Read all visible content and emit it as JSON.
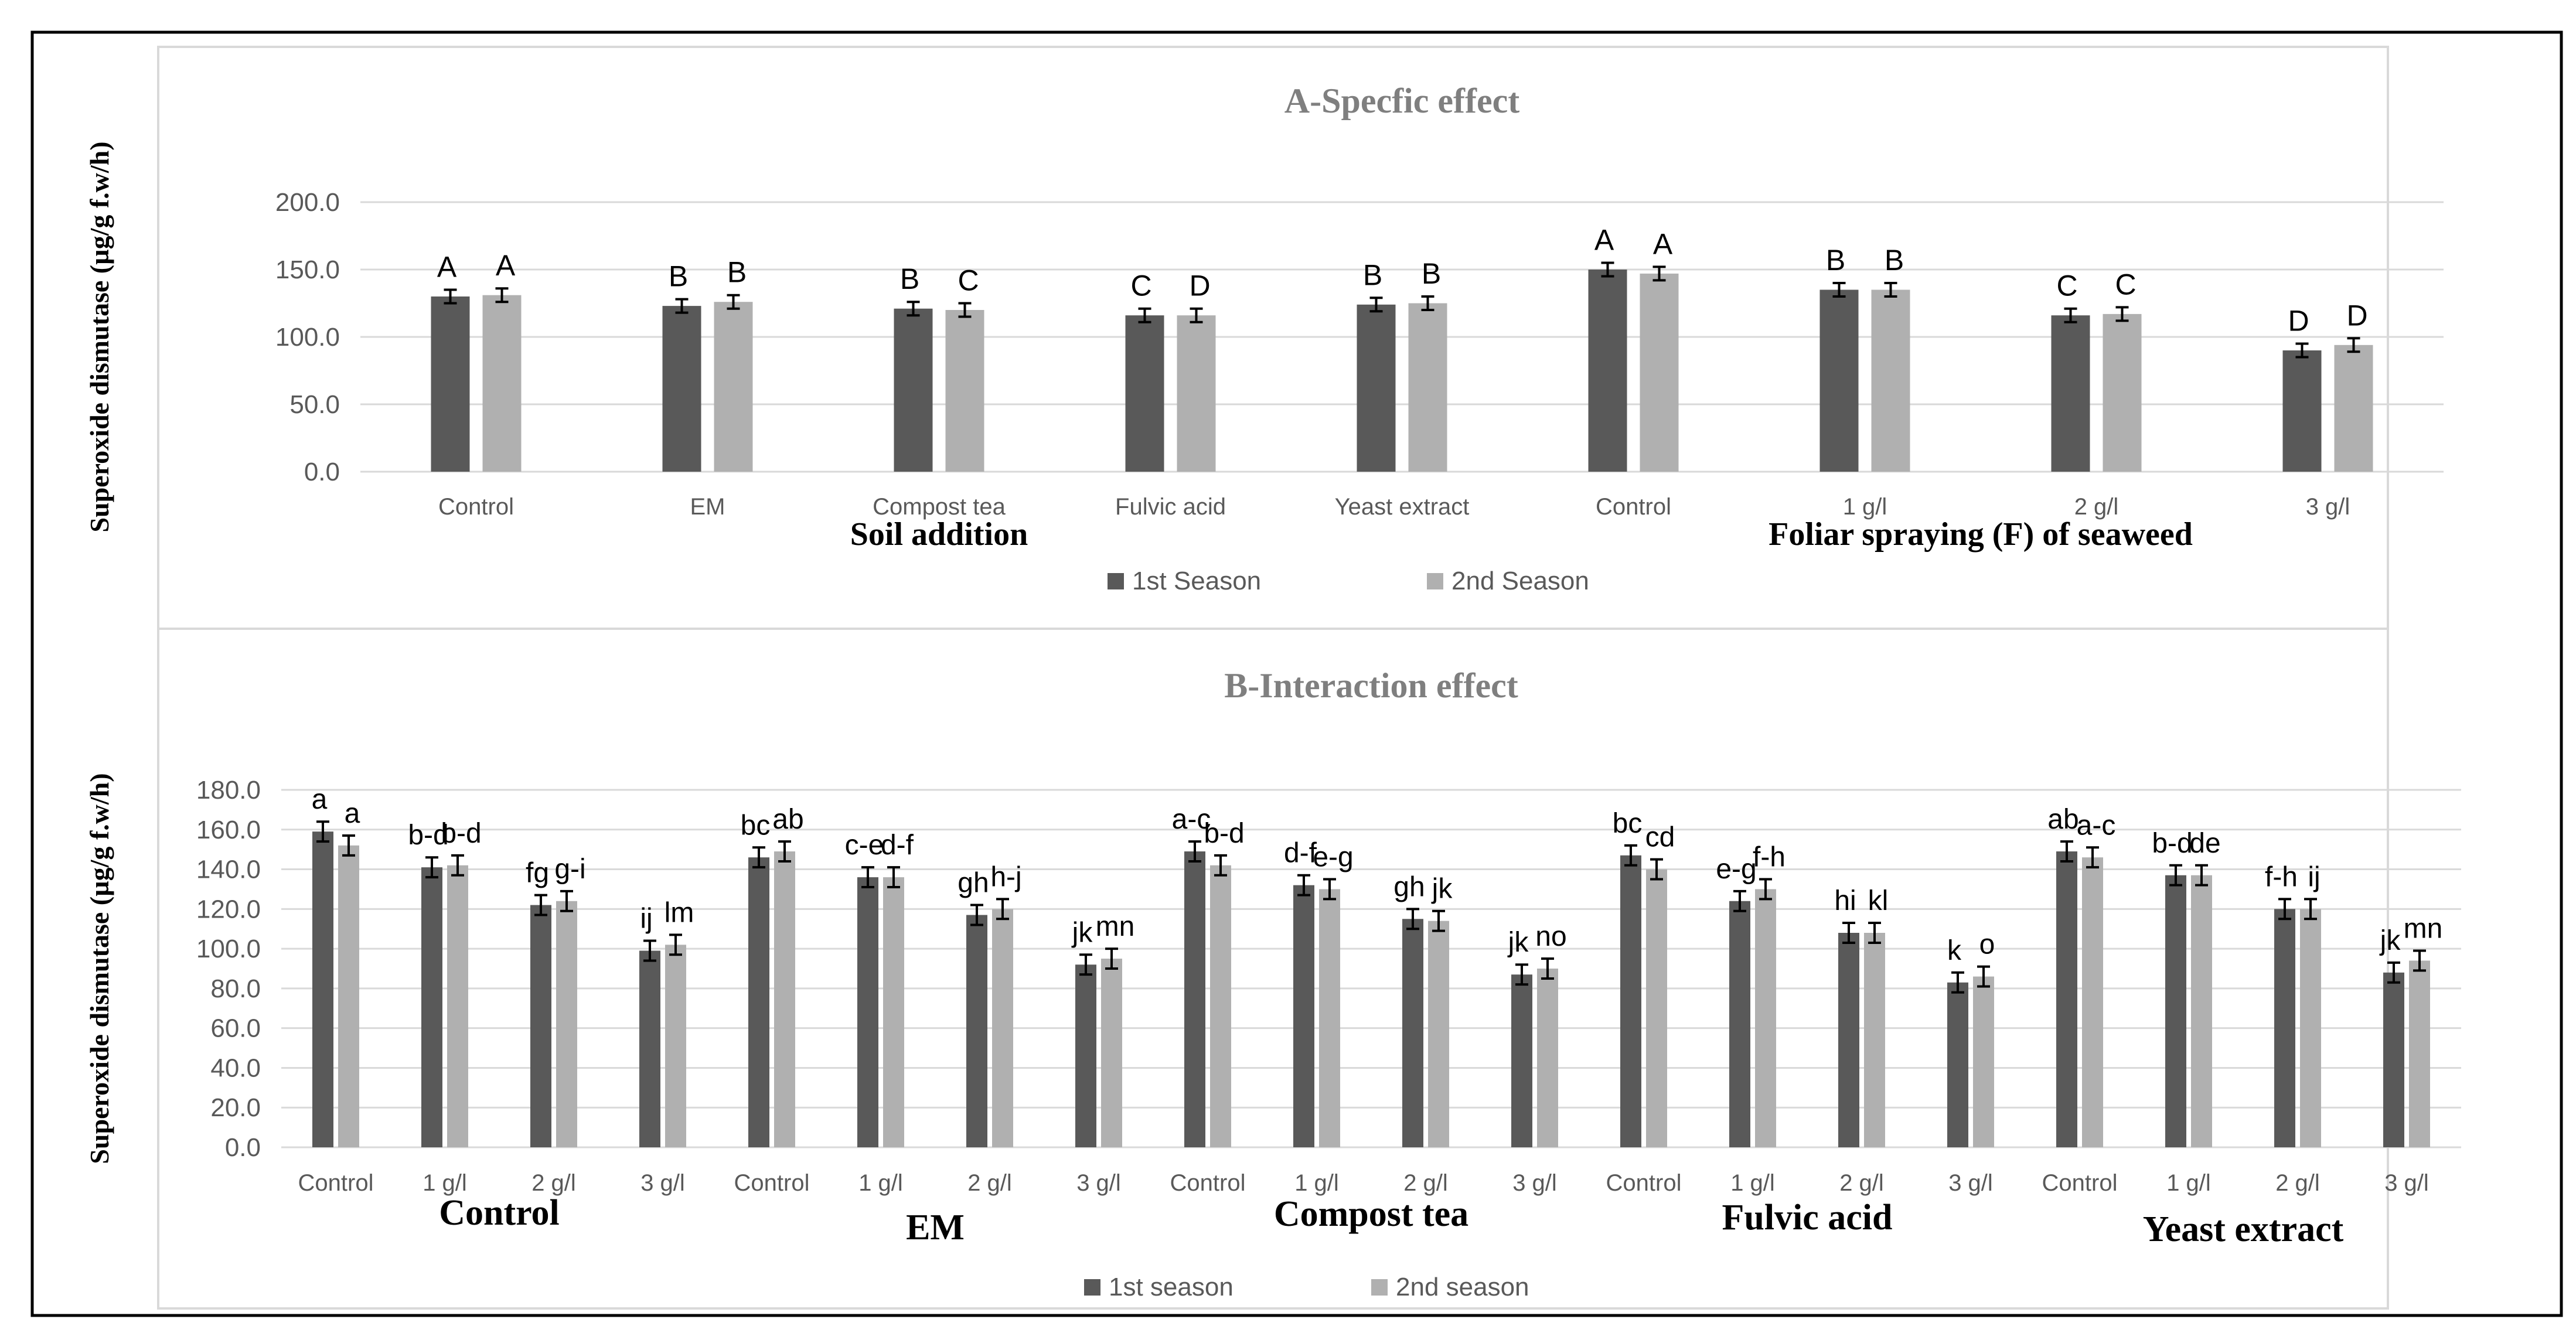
{
  "colors": {
    "season1": "#595959",
    "season2": "#b0b0b0",
    "gridline": "#d9d9d9",
    "title": "#7f7f7f",
    "text": "#000000",
    "axis_text": "#595959",
    "frame": "#000000",
    "panel_border": "#d9d9d9"
  },
  "chart_data": [
    {
      "type": "bar",
      "title": "A-Specfic effect",
      "ylabel": "Superoxide dismutase (µg/g f.w/h)",
      "ylim": [
        0,
        200
      ],
      "yticks": [
        "0.0",
        "50.0",
        "100.0",
        "150.0",
        "200.0"
      ],
      "grid": true,
      "legend_position": "bottom-center",
      "categories": [
        "Control",
        "EM",
        "Compost tea",
        "Fulvic acid",
        "Yeast extract",
        "Control",
        "1 g/l",
        "2 g/l",
        "3 g/l"
      ],
      "groups": [
        {
          "label": "Soil addition",
          "categories": [
            "Control",
            "EM",
            "Compost tea",
            "Fulvic acid",
            "Yeast extract"
          ]
        },
        {
          "label": "Foliar spraying (F) of seaweed",
          "categories": [
            "Control",
            "1 g/l",
            "2 g/l",
            "3 g/l"
          ]
        }
      ],
      "series": [
        {
          "name": "1st Season",
          "values": [
            130,
            123,
            121,
            116,
            124,
            150,
            135,
            116,
            90
          ],
          "errors": [
            5,
            5,
            5,
            5,
            5,
            5,
            5,
            5,
            5
          ],
          "letters": [
            "A",
            "B",
            "B",
            "C",
            "B",
            "A",
            "B",
            "C",
            "D"
          ]
        },
        {
          "name": "2nd Season",
          "values": [
            131,
            126,
            120,
            116,
            125,
            147,
            135,
            117,
            94
          ],
          "errors": [
            5,
            5,
            5,
            5,
            5,
            5,
            5,
            5,
            5
          ],
          "letters": [
            "A",
            "B",
            "C",
            "D",
            "B",
            "A",
            "B",
            "C",
            "D"
          ]
        }
      ]
    },
    {
      "type": "bar",
      "title": "B-Interaction effect",
      "ylabel": "Superoxide dismutase (µg/g f.w/h)",
      "ylim": [
        0,
        180
      ],
      "yticks": [
        "0.0",
        "20.0",
        "40.0",
        "60.0",
        "80.0",
        "100.0",
        "120.0",
        "140.0",
        "160.0",
        "180.0"
      ],
      "grid": true,
      "legend_position": "bottom-center",
      "categories": [
        "Control",
        "1 g/l",
        "2 g/l",
        "3 g/l",
        "Control",
        "1 g/l",
        "2 g/l",
        "3 g/l",
        "Control",
        "1 g/l",
        "2 g/l",
        "3 g/l",
        "Control",
        "1 g/l",
        "2 g/l",
        "3 g/l",
        "Control",
        "1 g/l",
        "2 g/l",
        "3 g/l"
      ],
      "groups": [
        {
          "label": "Control",
          "categories": [
            "Control",
            "1 g/l",
            "2 g/l",
            "3 g/l"
          ]
        },
        {
          "label": "EM",
          "categories": [
            "Control",
            "1 g/l",
            "2 g/l",
            "3 g/l"
          ]
        },
        {
          "label": "Compost tea",
          "categories": [
            "Control",
            "1 g/l",
            "2 g/l",
            "3 g/l"
          ]
        },
        {
          "label": "Fulvic acid",
          "categories": [
            "Control",
            "1 g/l",
            "2 g/l",
            "3 g/l"
          ]
        },
        {
          "label": "Yeast extract",
          "categories": [
            "Control",
            "1 g/l",
            "2 g/l",
            "3 g/l"
          ]
        }
      ],
      "series": [
        {
          "name": "1st season",
          "values": [
            159,
            141,
            122,
            99,
            146,
            136,
            117,
            92,
            149,
            132,
            115,
            87,
            147,
            124,
            108,
            83,
            149,
            137,
            120,
            88
          ],
          "errors": [
            5,
            5,
            5,
            5,
            5,
            5,
            5,
            5,
            5,
            5,
            5,
            5,
            5,
            5,
            5,
            5,
            5,
            5,
            5,
            5
          ],
          "letters": [
            "a",
            "b-d",
            "fg",
            "ij",
            "bc",
            "c-e",
            "gh",
            "jk",
            "a-c",
            "d-f",
            "gh",
            "jk",
            "bc",
            "e-g",
            "hi",
            "k",
            "ab",
            "b-d",
            "f-h",
            "jk"
          ]
        },
        {
          "name": "2nd season",
          "values": [
            152,
            142,
            124,
            102,
            149,
            136,
            120,
            95,
            142,
            130,
            114,
            90,
            140,
            130,
            108,
            86,
            146,
            137,
            120,
            94
          ],
          "errors": [
            5,
            5,
            5,
            5,
            5,
            5,
            5,
            5,
            5,
            5,
            5,
            5,
            5,
            5,
            5,
            5,
            5,
            5,
            5,
            5
          ],
          "letters": [
            "a",
            "b-d",
            "g-i",
            "lm",
            "ab",
            "d-f",
            "h-j",
            "mn",
            "b-d",
            "e-g",
            "jk",
            "no",
            "cd",
            "f-h",
            "kl",
            "o",
            "a-c",
            "de",
            "ij",
            "mn"
          ]
        }
      ]
    }
  ]
}
